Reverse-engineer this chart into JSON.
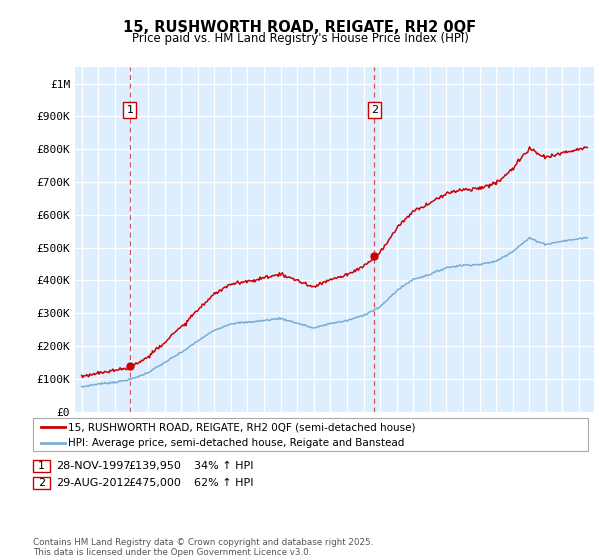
{
  "title": "15, RUSHWORTH ROAD, REIGATE, RH2 0QF",
  "subtitle": "Price paid vs. HM Land Registry's House Price Index (HPI)",
  "legend_line1": "15, RUSHWORTH ROAD, REIGATE, RH2 0QF (semi-detached house)",
  "legend_line2": "HPI: Average price, semi-detached house, Reigate and Banstead",
  "footer": "Contains HM Land Registry data © Crown copyright and database right 2025.\nThis data is licensed under the Open Government Licence v3.0.",
  "annotation1_label": "1",
  "annotation1_date": "28-NOV-1997",
  "annotation1_price": "£139,950",
  "annotation1_hpi": "34% ↑ HPI",
  "annotation2_label": "2",
  "annotation2_date": "29-AUG-2012",
  "annotation2_price": "£475,000",
  "annotation2_hpi": "62% ↑ HPI",
  "sale_color": "#cc0000",
  "hpi_color": "#7aadd4",
  "background_color": "#ddeeff",
  "grid_color": "#ffffff",
  "ylim": [
    0,
    1050000
  ],
  "yticks": [
    0,
    100000,
    200000,
    300000,
    400000,
    500000,
    600000,
    700000,
    800000,
    900000,
    1000000
  ],
  "ytick_labels": [
    "£0",
    "£100K",
    "£200K",
    "£300K",
    "£400K",
    "£500K",
    "£600K",
    "£700K",
    "£800K",
    "£900K",
    "£1M"
  ],
  "sale1_x": 1997.91,
  "sale1_y": 139950,
  "sale2_x": 2012.66,
  "sale2_y": 475000,
  "vline1_x": 1997.91,
  "vline2_x": 2012.66,
  "xlim_left": 1994.6,
  "xlim_right": 2025.9
}
